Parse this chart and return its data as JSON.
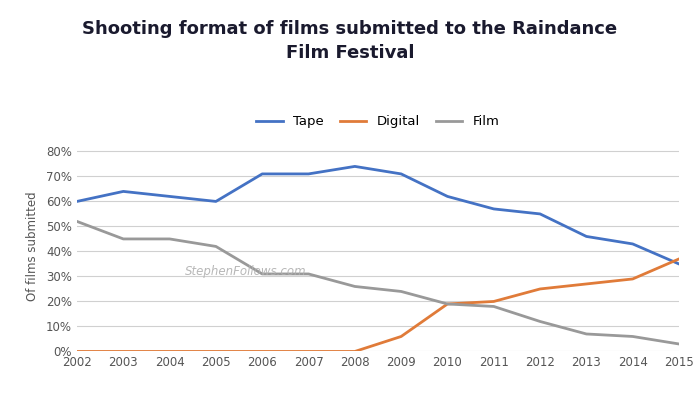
{
  "title": "Shooting format of films submitted to the Raindance\nFilm Festival",
  "ylabel": "Of films submitted",
  "years": [
    2002,
    2003,
    2004,
    2005,
    2006,
    2007,
    2008,
    2009,
    2010,
    2011,
    2012,
    2013,
    2014,
    2015
  ],
  "tape": [
    0.6,
    0.64,
    0.62,
    0.6,
    0.71,
    0.71,
    0.74,
    0.71,
    0.62,
    0.57,
    0.55,
    0.46,
    0.43,
    0.35
  ],
  "digital": [
    0.0,
    0.0,
    0.0,
    0.0,
    0.0,
    0.0,
    0.0,
    0.06,
    0.19,
    0.2,
    0.25,
    0.27,
    0.29,
    0.37
  ],
  "film": [
    0.52,
    0.45,
    0.45,
    0.42,
    0.31,
    0.31,
    0.26,
    0.24,
    0.19,
    0.18,
    0.12,
    0.07,
    0.06,
    0.03
  ],
  "tape_color": "#4472c4",
  "digital_color": "#e07b39",
  "film_color": "#999999",
  "bg_color": "#ffffff",
  "grid_color": "#d0d0d0",
  "watermark": "StephenFollows.com",
  "ylim": [
    0.0,
    0.84
  ],
  "yticks": [
    0.0,
    0.1,
    0.2,
    0.3,
    0.4,
    0.5,
    0.6,
    0.7,
    0.8
  ]
}
